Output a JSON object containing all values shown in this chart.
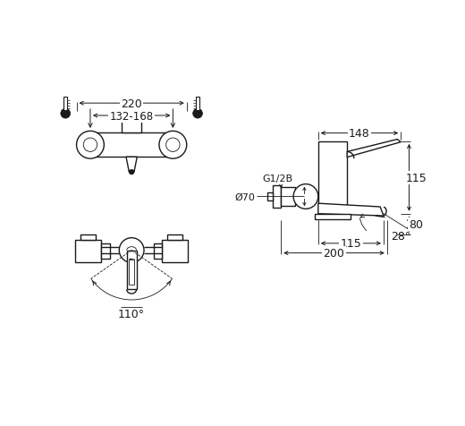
{
  "bg_color": "#ffffff",
  "line_color": "#1a1a1a",
  "lw": 1.0,
  "lw_thin": 0.6,
  "dims": {
    "top_width": "220",
    "center_spacing": "132-168",
    "side_width": "148",
    "diameter": "Ø70",
    "thread": "G1/2B",
    "height_115": "115",
    "height_80": "80",
    "depth_115": "115",
    "depth_200": "200",
    "angle_28": "28°",
    "angle_110": "110°"
  }
}
